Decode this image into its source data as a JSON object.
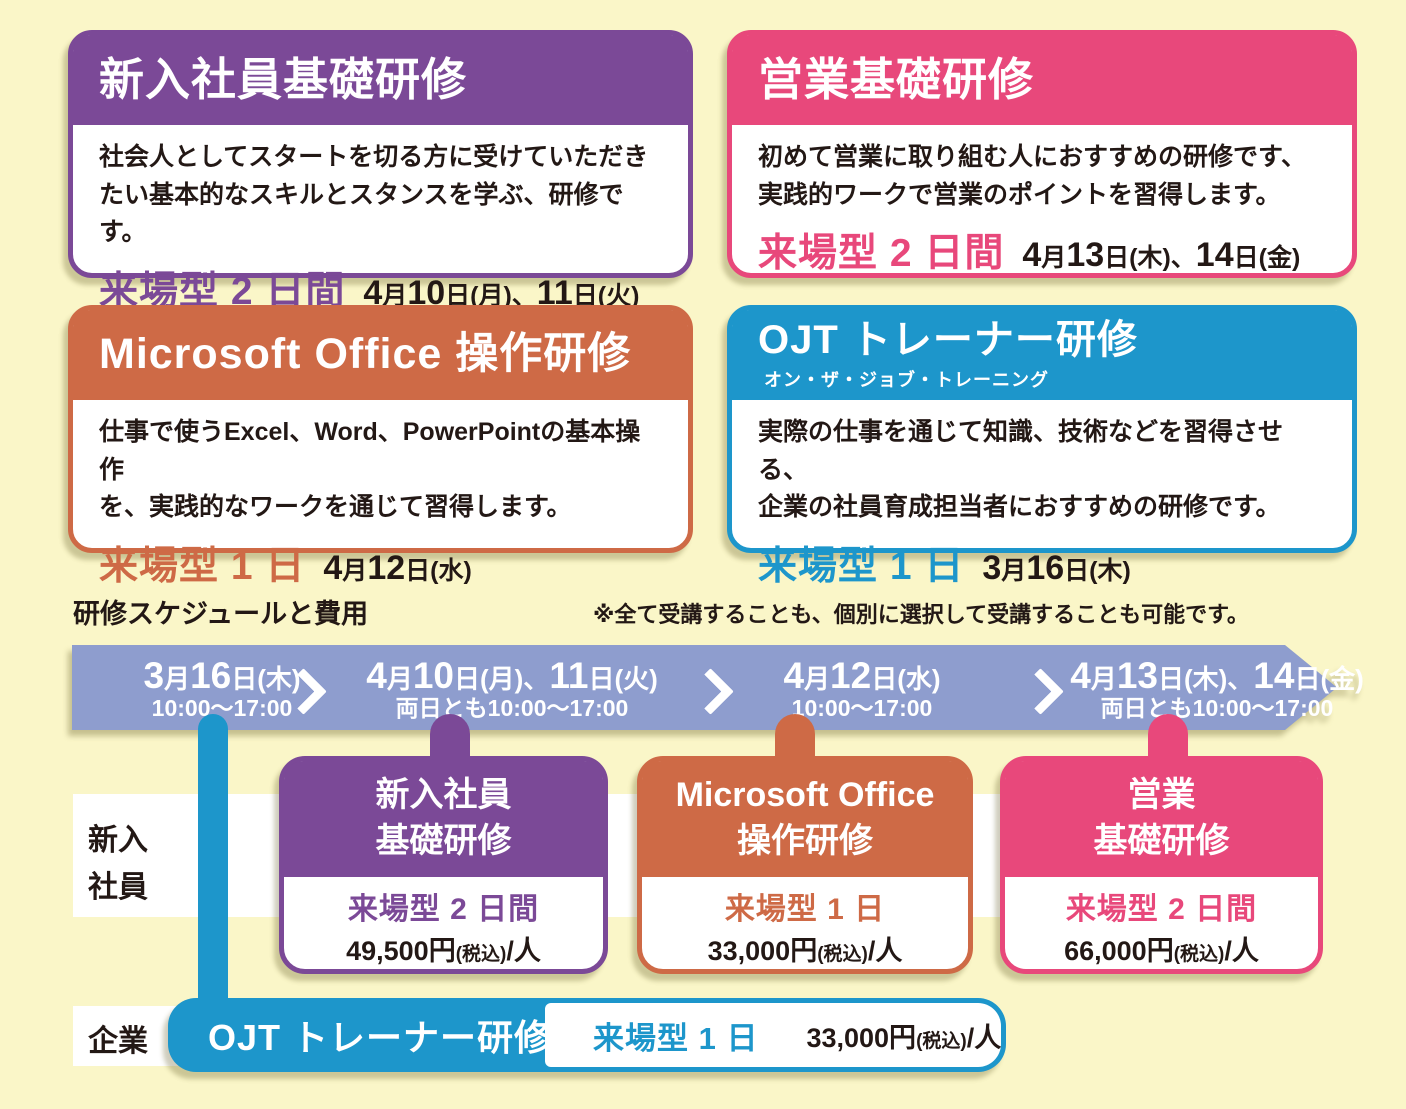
{
  "page": {
    "background_color": "#FAF6C8",
    "text_color": "#231815"
  },
  "colors": {
    "purple": "#7B4997",
    "pink": "#E8487B",
    "orange": "#CE6A46",
    "blue": "#1D96CB",
    "timeline_band": "#8E9DCE",
    "row_band": "#FFFFFF"
  },
  "cards": [
    {
      "id": "new-employee-basic",
      "title": "新入社員基礎研修",
      "description": "社会人としてスタートを切る方に受けていただき\nたい基本的なスキルとスタンスを学ぶ、研修です。",
      "format": "来場型 2 日間",
      "date_segments": [
        {
          "t": "4",
          "c": "num"
        },
        {
          "t": "月",
          "c": "sm"
        },
        {
          "t": "10",
          "c": "num"
        },
        {
          "t": "日(月)、",
          "c": "sm"
        },
        {
          "t": "11",
          "c": "num"
        },
        {
          "t": "日(火)",
          "c": "sm"
        }
      ],
      "accent": "#7B4997"
    },
    {
      "id": "sales-basic",
      "title": "営業基礎研修",
      "description": "初めて営業に取り組む人におすすめの研修です、\n実践的ワークで営業のポイントを習得します。",
      "format": "来場型 2 日間",
      "date_segments": [
        {
          "t": "4",
          "c": "num"
        },
        {
          "t": "月",
          "c": "sm"
        },
        {
          "t": "13",
          "c": "num"
        },
        {
          "t": "日(木)、",
          "c": "sm"
        },
        {
          "t": "14",
          "c": "num"
        },
        {
          "t": "日(金)",
          "c": "sm"
        }
      ],
      "accent": "#E8487B"
    },
    {
      "id": "ms-office",
      "title": "Microsoft Office 操作研修",
      "description": "仕事で使うExcel、Word、PowerPointの基本操作\nを、実践的なワークを通じて習得します。",
      "format": "来場型 1 日",
      "date_segments": [
        {
          "t": "4",
          "c": "num"
        },
        {
          "t": "月",
          "c": "sm"
        },
        {
          "t": "12",
          "c": "num"
        },
        {
          "t": "日(水)",
          "c": "sm"
        }
      ],
      "accent": "#CE6A46"
    },
    {
      "id": "ojt-trainer",
      "title": "OJT トレーナー研修",
      "subtitle": "オン・ザ・ジョブ・トレーニング",
      "description": "実際の仕事を通じて知識、技術などを習得させる、\n企業の社員育成担当者におすすめの研修です。",
      "format": "来場型 1 日",
      "date_segments": [
        {
          "t": "3",
          "c": "num"
        },
        {
          "t": "月",
          "c": "sm"
        },
        {
          "t": "16",
          "c": "num"
        },
        {
          "t": "日(木)",
          "c": "sm"
        }
      ],
      "accent": "#1D96CB"
    }
  ],
  "schedule": {
    "heading": "研修スケジュールと費用",
    "note": "※全て受講することも、個別に選択して受講することも可能です。",
    "timeline": [
      {
        "date_segments": [
          {
            "t": "3",
            "c": "num"
          },
          {
            "t": "月",
            "c": "sm"
          },
          {
            "t": "16",
            "c": "num"
          },
          {
            "t": "日(木)",
            "c": "sm"
          }
        ],
        "time": "10:00〜17:00"
      },
      {
        "date_segments": [
          {
            "t": "4",
            "c": "num"
          },
          {
            "t": "月",
            "c": "sm"
          },
          {
            "t": "10",
            "c": "num"
          },
          {
            "t": "日(月)、",
            "c": "sm"
          },
          {
            "t": "11",
            "c": "num"
          },
          {
            "t": "日(火)",
            "c": "sm"
          }
        ],
        "time": "両日とも10:00〜17:00"
      },
      {
        "date_segments": [
          {
            "t": "4",
            "c": "num"
          },
          {
            "t": "月",
            "c": "sm"
          },
          {
            "t": "12",
            "c": "num"
          },
          {
            "t": "日(水)",
            "c": "sm"
          }
        ],
        "time": "10:00〜17:00"
      },
      {
        "date_segments": [
          {
            "t": "4",
            "c": "num"
          },
          {
            "t": "月",
            "c": "sm"
          },
          {
            "t": "13",
            "c": "num"
          },
          {
            "t": "日(木)、",
            "c": "sm"
          },
          {
            "t": "14",
            "c": "num"
          },
          {
            "t": "日(金)",
            "c": "sm"
          }
        ],
        "time": "両日とも10:00〜17:00"
      }
    ],
    "row_labels": {
      "new_employee": "新入\n社員",
      "company": "企業"
    },
    "cards": [
      {
        "title": "新入社員\n基礎研修",
        "format": "来場型 2 日間",
        "price_segments": [
          {
            "t": "49,500円",
            "c": "main"
          },
          {
            "t": "(税込)",
            "c": "tax"
          },
          {
            "t": "/人",
            "c": "main"
          }
        ],
        "accent": "#7B4997"
      },
      {
        "title": "Microsoft Office\n操作研修",
        "format": "来場型 1 日",
        "price_segments": [
          {
            "t": "33,000円",
            "c": "main"
          },
          {
            "t": "(税込)",
            "c": "tax"
          },
          {
            "t": "/人",
            "c": "main"
          }
        ],
        "accent": "#CE6A46"
      },
      {
        "title": "営業\n基礎研修",
        "format": "来場型 2 日間",
        "price_segments": [
          {
            "t": "66,000円",
            "c": "main"
          },
          {
            "t": "(税込)",
            "c": "tax"
          },
          {
            "t": "/人",
            "c": "main"
          }
        ],
        "accent": "#E8487B"
      }
    ],
    "ojt_card": {
      "title": "OJT トレーナー研修",
      "format": "来場型 1 日",
      "price_segments": [
        {
          "t": "33,000円",
          "c": "main"
        },
        {
          "t": "(税込)",
          "c": "tax"
        },
        {
          "t": "/人",
          "c": "main"
        }
      ],
      "accent": "#1D96CB"
    }
  }
}
